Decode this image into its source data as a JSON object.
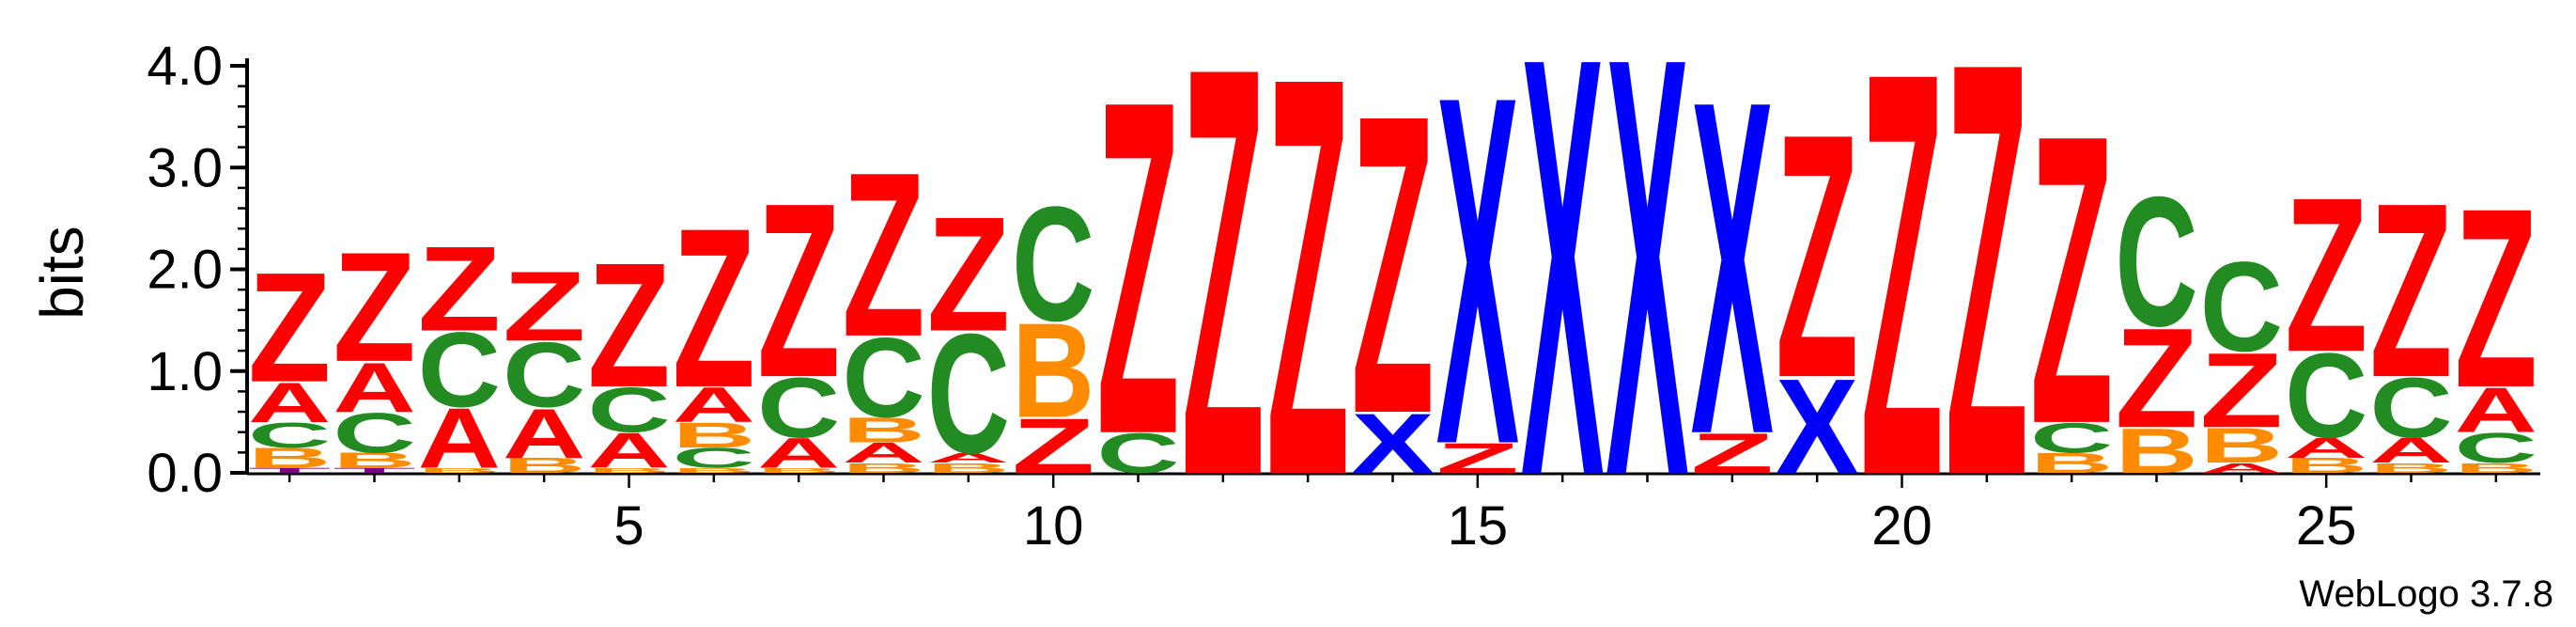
{
  "chart_data": {
    "type": "sequence_logo",
    "ylabel": "bits",
    "ylim": [
      0,
      4.0
    ],
    "yticks": [
      "0.0",
      "1.0",
      "2.0",
      "3.0",
      "4.0"
    ],
    "xticks": [
      5,
      10,
      15,
      20,
      25
    ],
    "footer": "WebLogo 3.7.8",
    "colors": {
      "Z": "#ff0000",
      "A": "#ff0000",
      "X": "#0000ff",
      "C": "#228b22",
      "B": "#ff8c00",
      "T": "#800080"
    },
    "positions": [
      {
        "pos": 1,
        "stack": [
          [
            "T",
            0.05
          ],
          [
            "B",
            0.2
          ],
          [
            "C",
            0.25
          ],
          [
            "A",
            0.4
          ],
          [
            "Z",
            1.1
          ]
        ]
      },
      {
        "pos": 2,
        "stack": [
          [
            "T",
            0.05
          ],
          [
            "B",
            0.15
          ],
          [
            "C",
            0.4
          ],
          [
            "A",
            0.5
          ],
          [
            "Z",
            1.1
          ]
        ]
      },
      {
        "pos": 3,
        "stack": [
          [
            "B",
            0.05
          ],
          [
            "A",
            0.6
          ],
          [
            "C",
            0.75
          ],
          [
            "Z",
            0.85
          ]
        ]
      },
      {
        "pos": 4,
        "stack": [
          [
            "B",
            0.15
          ],
          [
            "A",
            0.5
          ],
          [
            "C",
            0.65
          ],
          [
            "Z",
            0.7
          ]
        ]
      },
      {
        "pos": 5,
        "stack": [
          [
            "B",
            0.05
          ],
          [
            "A",
            0.35
          ],
          [
            "C",
            0.45
          ],
          [
            "Z",
            1.25
          ]
        ]
      },
      {
        "pos": 6,
        "stack": [
          [
            "B",
            0.05
          ],
          [
            "C",
            0.2
          ],
          [
            "B",
            0.25
          ],
          [
            "A",
            0.35
          ],
          [
            "Z",
            1.6
          ]
        ]
      },
      {
        "pos": 7,
        "stack": [
          [
            "B",
            0.05
          ],
          [
            "A",
            0.3
          ],
          [
            "C",
            0.6
          ],
          [
            "Z",
            1.75
          ]
        ]
      },
      {
        "pos": 8,
        "stack": [
          [
            "B",
            0.1
          ],
          [
            "A",
            0.2
          ],
          [
            "B",
            0.25
          ],
          [
            "C",
            0.8
          ],
          [
            "Z",
            1.65
          ]
        ]
      },
      {
        "pos": 9,
        "stack": [
          [
            "B",
            0.1
          ],
          [
            "A",
            0.1
          ],
          [
            "C",
            1.2
          ],
          [
            "Z",
            1.15
          ]
        ]
      },
      {
        "pos": 10,
        "stack": [
          [
            "Z",
            0.55
          ],
          [
            "B",
            0.95
          ],
          [
            "C",
            1.15
          ]
        ]
      },
      {
        "pos": 11,
        "stack": [
          [
            "C",
            0.4
          ],
          [
            "Z",
            3.35
          ]
        ]
      },
      {
        "pos": 12,
        "stack": [
          [
            "Z",
            4.1
          ]
        ]
      },
      {
        "pos": 13,
        "stack": [
          [
            "Z",
            4.0
          ]
        ]
      },
      {
        "pos": 14,
        "stack": [
          [
            "X",
            0.6
          ],
          [
            "Z",
            3.0
          ]
        ]
      },
      {
        "pos": 15,
        "stack": [
          [
            "Z",
            0.3
          ],
          [
            "X",
            3.5
          ]
        ]
      },
      {
        "pos": 16,
        "stack": [
          [
            "X",
            4.2
          ]
        ]
      },
      {
        "pos": 17,
        "stack": [
          [
            "X",
            4.2
          ]
        ]
      },
      {
        "pos": 18,
        "stack": [
          [
            "Z",
            0.4
          ],
          [
            "X",
            3.35
          ]
        ]
      },
      {
        "pos": 19,
        "stack": [
          [
            "X",
            0.95
          ],
          [
            "Z",
            2.45
          ]
        ]
      },
      {
        "pos": 20,
        "stack": [
          [
            "Z",
            4.05
          ]
        ]
      },
      {
        "pos": 21,
        "stack": [
          [
            "Z",
            4.15
          ]
        ]
      },
      {
        "pos": 22,
        "stack": [
          [
            "B",
            0.2
          ],
          [
            "C",
            0.3
          ],
          [
            "Z",
            2.9
          ]
        ]
      },
      {
        "pos": 23,
        "stack": [
          [
            "B",
            0.45
          ],
          [
            "Z",
            1.0
          ],
          [
            "C",
            1.3
          ]
        ]
      },
      {
        "pos": 24,
        "stack": [
          [
            "A",
            0.1
          ],
          [
            "B",
            0.35
          ],
          [
            "Z",
            0.75
          ],
          [
            "C",
            0.9
          ]
        ]
      },
      {
        "pos": 25,
        "stack": [
          [
            "B",
            0.15
          ],
          [
            "A",
            0.2
          ],
          [
            "C",
            0.85
          ],
          [
            "Z",
            1.55
          ]
        ]
      },
      {
        "pos": 26,
        "stack": [
          [
            "B",
            0.1
          ],
          [
            "A",
            0.25
          ],
          [
            "C",
            0.6
          ],
          [
            "Z",
            1.75
          ]
        ]
      },
      {
        "pos": 27,
        "stack": [
          [
            "B",
            0.1
          ],
          [
            "C",
            0.3
          ],
          [
            "A",
            0.45
          ],
          [
            "Z",
            1.8
          ]
        ]
      }
    ]
  }
}
